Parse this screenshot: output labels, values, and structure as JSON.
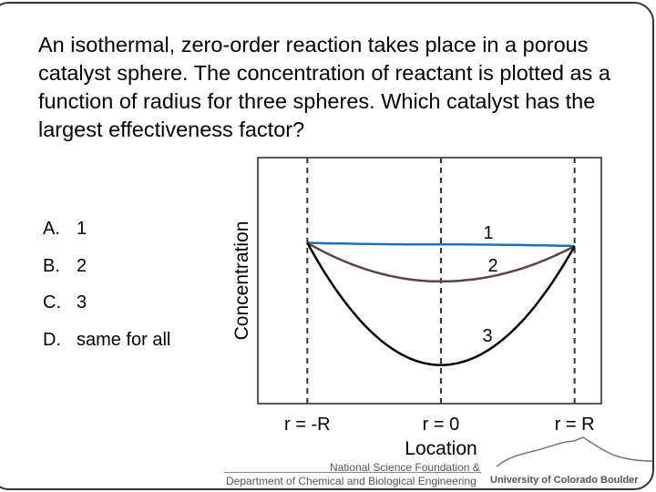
{
  "question": "An isothermal, zero-order reaction takes place in a porous catalyst sphere. The concentration of reactant is plotted as a function of radius for three spheres. Which catalyst has the largest effectiveness factor?",
  "options": [
    {
      "letter": "A.",
      "text": "1"
    },
    {
      "letter": "B.",
      "text": "2"
    },
    {
      "letter": "C.",
      "text": "3"
    },
    {
      "letter": "D.",
      "text": "same for all"
    }
  ],
  "chart_data": {
    "type": "line",
    "xlabel": "Location",
    "ylabel": "Concentration",
    "x_ticks": [
      "r = -R",
      "r = 0",
      "r = R"
    ],
    "x_tick_values": [
      -1,
      0,
      1
    ],
    "xlim": [
      -1.37,
      1.2
    ],
    "ylim": [
      0,
      1.53
    ],
    "grid": "dashed vertical lines at r = -R, r = 0, r = R",
    "series": [
      {
        "name": "1",
        "color": "#1f6fbf",
        "x": [
          -1,
          0,
          1
        ],
        "y": [
          1.0,
          0.99,
          0.98
        ]
      },
      {
        "name": "2",
        "color": "#5a4444",
        "x": [
          -1,
          0,
          1
        ],
        "y": [
          1.0,
          0.76,
          0.98
        ]
      },
      {
        "name": "3",
        "color": "#000000",
        "x": [
          -1,
          0,
          1
        ],
        "y": [
          1.0,
          0.24,
          0.98
        ]
      }
    ]
  },
  "footer": {
    "line1": "National Science Foundation &",
    "line2": "Department of Chemical and Biological Engineering",
    "logo_text": "University of Colorado Boulder"
  }
}
